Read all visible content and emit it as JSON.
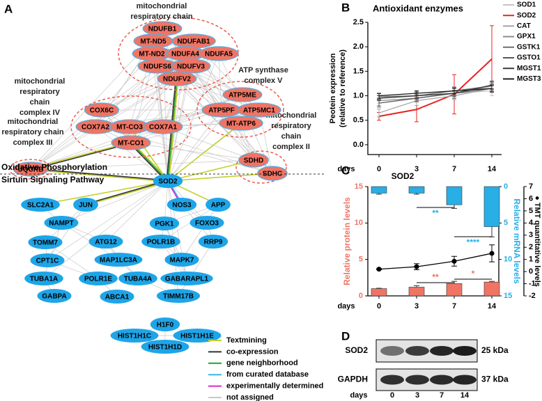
{
  "panel_labels": [
    "A",
    "B",
    "C",
    "D"
  ],
  "network": {
    "clusters": [
      {
        "label": [
          "mitochondrial",
          "respiratory chain",
          "complex I"
        ]
      },
      {
        "label": [
          "mitochondrial",
          "respiratory",
          "chain",
          "complex IV"
        ]
      },
      {
        "label": [
          "ATP synthase",
          "complex V"
        ]
      },
      {
        "label": [
          "mitochondrial",
          "respiratory chain",
          "complex III"
        ]
      },
      {
        "label": [
          "mitochondrial",
          "respiratory",
          "chain",
          "complex II"
        ]
      }
    ],
    "nodes": [
      {
        "label": "NDUFB1",
        "color": "#f07464"
      },
      {
        "label": "MT-ND5",
        "color": "#f07464"
      },
      {
        "label": "NDUFAB1",
        "color": "#f07464"
      },
      {
        "label": "MT-ND2",
        "color": "#f07464"
      },
      {
        "label": "NDUFA4",
        "color": "#f07464"
      },
      {
        "label": "NDUFA5",
        "color": "#f07464"
      },
      {
        "label": "NDUFS6",
        "color": "#f07464"
      },
      {
        "label": "NDUFV3",
        "color": "#f07464"
      },
      {
        "label": "NDUFV2",
        "color": "#f07464"
      },
      {
        "label": "COX6C",
        "color": "#f07464"
      },
      {
        "label": "COX7A2",
        "color": "#f07464"
      },
      {
        "label": "MT-CO3",
        "color": "#f07464"
      },
      {
        "label": "COX7A1",
        "color": "#f07464"
      },
      {
        "label": "MT-CO1",
        "color": "#f07464"
      },
      {
        "label": "ATP5ME",
        "color": "#f07464"
      },
      {
        "label": "ATP5PF",
        "color": "#f07464"
      },
      {
        "label": "ATP5MC1",
        "color": "#f07464"
      },
      {
        "label": "MT-ATP6",
        "color": "#f07464"
      },
      {
        "label": "UQCRB",
        "color": "#f07464"
      },
      {
        "label": "SDHD",
        "color": "#f07464"
      },
      {
        "label": "SDHC",
        "color": "#f07464"
      },
      {
        "label": "SOD2",
        "color": "#1ea5e8"
      },
      {
        "label": "SLC2A1",
        "color": "#1ea5e8"
      },
      {
        "label": "JUN",
        "color": "#1ea5e8"
      },
      {
        "label": "NOS3",
        "color": "#1ea5e8"
      },
      {
        "label": "APP",
        "color": "#1ea5e8"
      },
      {
        "label": "NAMPT",
        "color": "#1ea5e8"
      },
      {
        "label": "PGK1",
        "color": "#1ea5e8"
      },
      {
        "label": "FOXO3",
        "color": "#1ea5e8"
      },
      {
        "label": "TOMM7",
        "color": "#1ea5e8"
      },
      {
        "label": "ATG12",
        "color": "#1ea5e8"
      },
      {
        "label": "POLR1B",
        "color": "#1ea5e8"
      },
      {
        "label": "RRP9",
        "color": "#1ea5e8"
      },
      {
        "label": "CPT1C",
        "color": "#1ea5e8"
      },
      {
        "label": "MAP1LC3A",
        "color": "#1ea5e8"
      },
      {
        "label": "MAPK7",
        "color": "#1ea5e8"
      },
      {
        "label": "TUBA1A",
        "color": "#1ea5e8"
      },
      {
        "label": "POLR1E",
        "color": "#1ea5e8"
      },
      {
        "label": "TUBA4A",
        "color": "#1ea5e8"
      },
      {
        "label": "GABARAPL1",
        "color": "#1ea5e8"
      },
      {
        "label": "GABPA",
        "color": "#1ea5e8"
      },
      {
        "label": "ABCA1",
        "color": "#1ea5e8"
      },
      {
        "label": "TIMM17B",
        "color": "#1ea5e8"
      },
      {
        "label": "H1F0",
        "color": "#1ea5e8"
      },
      {
        "label": "HIST1H1C",
        "color": "#1ea5e8"
      },
      {
        "label": "HIST1H1E",
        "color": "#1ea5e8"
      },
      {
        "label": "HIST1H1D",
        "color": "#1ea5e8"
      }
    ],
    "sections": [
      "Oxidative Phosphorylation",
      "Sirtuin Signaling Pathway"
    ],
    "legend": [
      {
        "label": "Textmining",
        "color": "#c3d12b"
      },
      {
        "label": "co-expression",
        "color": "#333333"
      },
      {
        "label": "gene neighborhood",
        "color": "#22a32a"
      },
      {
        "label": "from curated database",
        "color": "#38b6e8"
      },
      {
        "label": "experimentally determined",
        "color": "#e024d0"
      },
      {
        "label": "not assigned",
        "color": "#c8c8c8"
      }
    ]
  },
  "chart_data": [
    {
      "type": "line",
      "title": "Antioxidant enzymes",
      "y_label": [
        "Peotein expression",
        "(relative to reference)"
      ],
      "x_label": "days",
      "categories": [
        "0",
        "3",
        "7",
        "14"
      ],
      "ylim": [
        -0.2,
        2.5
      ],
      "yticks": [
        {
          "value": 0,
          "label": "0.0"
        },
        {
          "value": 0.5,
          "label": "0.5"
        },
        {
          "value": 1,
          "label": "1.0"
        },
        {
          "value": 1.5,
          "label": "1.5"
        },
        {
          "value": 2,
          "label": "2.0"
        },
        {
          "value": 2.5,
          "label": "2.5"
        }
      ],
      "series": [
        {
          "name": "SOD1",
          "color": "#c4c4c4",
          "values": [
            0.95,
            1.0,
            1.05,
            1.1
          ],
          "errors": [
            0.1,
            0.08,
            0.06,
            0.1
          ]
        },
        {
          "name": "SOD2",
          "color": "#e8231f",
          "values": [
            0.58,
            0.72,
            1.03,
            1.75
          ],
          "errors": [
            0.08,
            0.25,
            0.4,
            0.68
          ]
        },
        {
          "name": "CAT",
          "color": "#a4a4a4",
          "values": [
            0.65,
            0.9,
            1.0,
            1.15
          ],
          "errors": [
            0.08,
            0.1,
            0.08,
            0.08
          ]
        },
        {
          "name": "GPX1",
          "color": "#8c8c8c",
          "values": [
            0.9,
            0.95,
            1.05,
            1.2
          ],
          "errors": [
            0.1,
            0.08,
            0.1,
            0.08
          ]
        },
        {
          "name": "GSTK1",
          "color": "#707070",
          "values": [
            0.98,
            1.0,
            1.1,
            1.2
          ],
          "errors": [
            0.06,
            0.08,
            0.08,
            0.06
          ]
        },
        {
          "name": "GSTO1",
          "color": "#565656",
          "values": [
            0.85,
            0.95,
            1.05,
            1.15
          ],
          "errors": [
            0.08,
            0.06,
            0.1,
            0.08
          ]
        },
        {
          "name": "MGST1",
          "color": "#3a3a3a",
          "values": [
            0.95,
            1.0,
            1.05,
            1.22
          ],
          "errors": [
            0.05,
            0.06,
            0.06,
            0.08
          ]
        },
        {
          "name": "MGST3",
          "color": "#1c1c1c",
          "values": [
            1.0,
            1.05,
            1.1,
            1.15
          ],
          "errors": [
            0.05,
            0.05,
            0.06,
            0.06
          ]
        }
      ]
    },
    {
      "type": "combo",
      "title": "SOD2",
      "x_label": "days",
      "categories": [
        "0",
        "3",
        "7",
        "14"
      ],
      "y_label": "Relative protein levels",
      "y2_label": "Relative mRNA levels",
      "y3_label": "● TMT quantitative levels",
      "ylim": [
        0,
        15
      ],
      "yticks": [
        0,
        5,
        10,
        15
      ],
      "y2lim": [
        15,
        0
      ],
      "y2ticks": [
        0,
        5,
        10,
        15
      ],
      "y3lim": [
        -2,
        7
      ],
      "y3ticks": [
        -2,
        -1,
        0,
        1,
        2,
        3,
        4,
        5,
        6,
        7
      ],
      "series": [
        {
          "type": "bar",
          "axis": "y",
          "color": "#f07464",
          "values": [
            1.0,
            1.2,
            1.7,
            1.9
          ],
          "errors": [
            0.05,
            0.2,
            0.3,
            0.1
          ]
        },
        {
          "type": "bar",
          "axis": "y2",
          "color": "#29aee6",
          "values": [
            0.9,
            0.9,
            2.5,
            5.5
          ],
          "errors": [
            0.15,
            0.15,
            0.5,
            1.4
          ]
        },
        {
          "type": "line",
          "axis": "y3",
          "color": "#000000",
          "values": [
            0.2,
            0.4,
            0.85,
            1.5
          ],
          "errors": [
            0.05,
            0.25,
            0.4,
            0.7
          ]
        }
      ],
      "annotations": [
        {
          "text": "**",
          "color": "#29aee6"
        },
        {
          "text": "****",
          "color": "#29aee6"
        },
        {
          "text": "**",
          "color": "#f07464"
        },
        {
          "text": "*",
          "color": "#f07464"
        }
      ]
    }
  ],
  "blot": {
    "rows": [
      {
        "label": "SOD2",
        "size": "25 kDa"
      },
      {
        "label": "GAPDH",
        "size": "37 kDa"
      }
    ],
    "x_label": "days",
    "lanes": [
      "0",
      "3",
      "7",
      "14"
    ]
  }
}
